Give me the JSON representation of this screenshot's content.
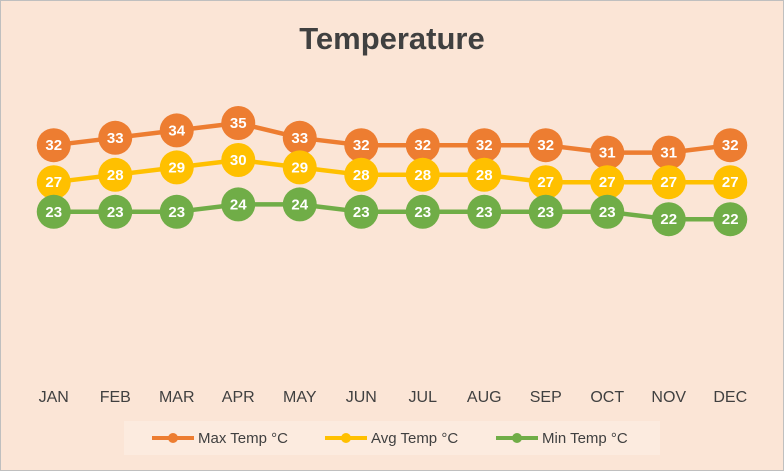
{
  "chart_data": {
    "type": "line",
    "title": "Temperature",
    "categories": [
      "JAN",
      "FEB",
      "MAR",
      "APR",
      "MAY",
      "JUN",
      "JUL",
      "AUG",
      "SEP",
      "OCT",
      "NOV",
      "DEC"
    ],
    "series": [
      {
        "name": "Max Temp °C",
        "color": "#ED7D31",
        "values": [
          32,
          33,
          34,
          35,
          33,
          32,
          32,
          32,
          32,
          31,
          31,
          32
        ]
      },
      {
        "name": "Avg Temp °C",
        "color": "#FFC000",
        "values": [
          27,
          28,
          29,
          30,
          29,
          28,
          28,
          28,
          27,
          27,
          27,
          27
        ]
      },
      {
        "name": "Min Temp °C",
        "color": "#70AD47",
        "values": [
          23,
          23,
          23,
          24,
          24,
          23,
          23,
          23,
          23,
          23,
          22,
          22
        ]
      }
    ],
    "ylim": [
      0,
      40
    ],
    "legend": "bottom"
  }
}
